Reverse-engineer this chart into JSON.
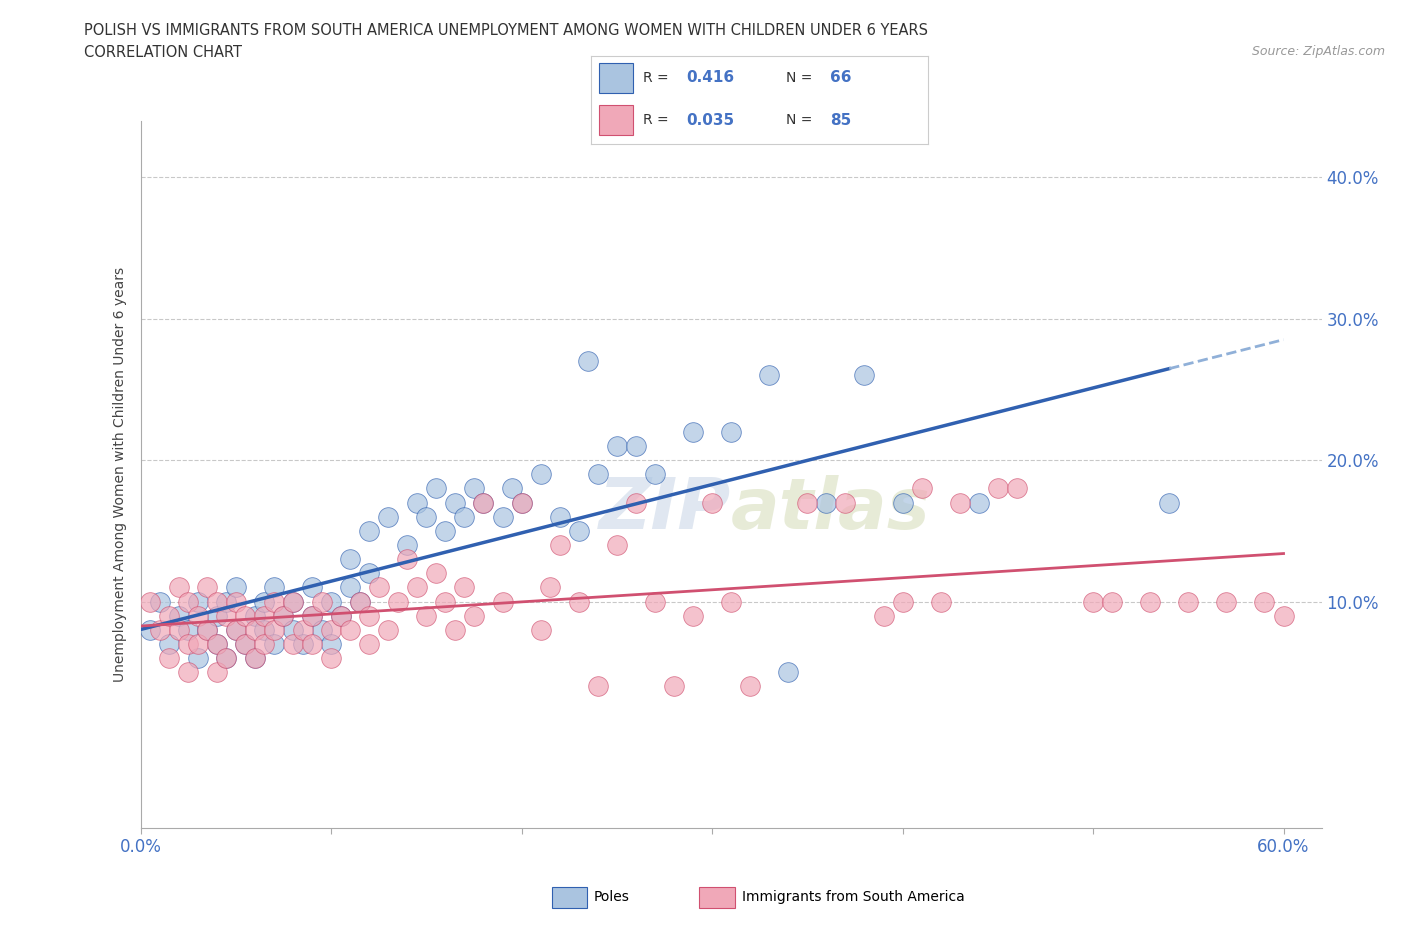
{
  "title_line1": "POLISH VS IMMIGRANTS FROM SOUTH AMERICA UNEMPLOYMENT AMONG WOMEN WITH CHILDREN UNDER 6 YEARS",
  "title_line2": "CORRELATION CHART",
  "source_text": "Source: ZipAtlas.com",
  "ylabel": "Unemployment Among Women with Children Under 6 years",
  "xlim": [
    0.0,
    0.62
  ],
  "ylim": [
    -0.06,
    0.44
  ],
  "xtick_labels": [
    "0.0%",
    "",
    "",
    "",
    "",
    "",
    "60.0%"
  ],
  "xtick_vals": [
    0.0,
    0.1,
    0.2,
    0.3,
    0.4,
    0.5,
    0.6
  ],
  "ytick_labels": [
    "10.0%",
    "20.0%",
    "30.0%",
    "40.0%"
  ],
  "ytick_vals": [
    0.1,
    0.2,
    0.3,
    0.4
  ],
  "R_poles": 0.416,
  "N_poles": 66,
  "R_sa": 0.035,
  "N_sa": 85,
  "poles_color": "#aac4e0",
  "sa_color": "#f0a8b8",
  "trendline_poles_color": "#3060b0",
  "trendline_sa_color": "#d05070",
  "trendline_poles_ext_color": "#90b0d8",
  "grid_color": "#bbbbbb",
  "background_color": "#ffffff",
  "legend_text_color": "#4472c4",
  "watermark_color": "#ccd8e8",
  "poles_scatter": [
    [
      0.005,
      0.08
    ],
    [
      0.01,
      0.1
    ],
    [
      0.015,
      0.07
    ],
    [
      0.02,
      0.09
    ],
    [
      0.025,
      0.08
    ],
    [
      0.03,
      0.06
    ],
    [
      0.03,
      0.1
    ],
    [
      0.035,
      0.08
    ],
    [
      0.04,
      0.07
    ],
    [
      0.04,
      0.09
    ],
    [
      0.045,
      0.06
    ],
    [
      0.045,
      0.1
    ],
    [
      0.05,
      0.08
    ],
    [
      0.05,
      0.11
    ],
    [
      0.055,
      0.07
    ],
    [
      0.06,
      0.09
    ],
    [
      0.06,
      0.06
    ],
    [
      0.065,
      0.1
    ],
    [
      0.065,
      0.08
    ],
    [
      0.07,
      0.07
    ],
    [
      0.07,
      0.11
    ],
    [
      0.075,
      0.09
    ],
    [
      0.08,
      0.08
    ],
    [
      0.08,
      0.1
    ],
    [
      0.085,
      0.07
    ],
    [
      0.09,
      0.09
    ],
    [
      0.09,
      0.11
    ],
    [
      0.095,
      0.08
    ],
    [
      0.1,
      0.1
    ],
    [
      0.1,
      0.07
    ],
    [
      0.105,
      0.09
    ],
    [
      0.11,
      0.11
    ],
    [
      0.11,
      0.13
    ],
    [
      0.115,
      0.1
    ],
    [
      0.12,
      0.12
    ],
    [
      0.12,
      0.15
    ],
    [
      0.13,
      0.16
    ],
    [
      0.14,
      0.14
    ],
    [
      0.145,
      0.17
    ],
    [
      0.15,
      0.16
    ],
    [
      0.155,
      0.18
    ],
    [
      0.16,
      0.15
    ],
    [
      0.165,
      0.17
    ],
    [
      0.17,
      0.16
    ],
    [
      0.175,
      0.18
    ],
    [
      0.18,
      0.17
    ],
    [
      0.19,
      0.16
    ],
    [
      0.195,
      0.18
    ],
    [
      0.2,
      0.17
    ],
    [
      0.21,
      0.19
    ],
    [
      0.22,
      0.16
    ],
    [
      0.23,
      0.15
    ],
    [
      0.235,
      0.27
    ],
    [
      0.24,
      0.19
    ],
    [
      0.25,
      0.21
    ],
    [
      0.26,
      0.21
    ],
    [
      0.27,
      0.19
    ],
    [
      0.29,
      0.22
    ],
    [
      0.31,
      0.22
    ],
    [
      0.33,
      0.26
    ],
    [
      0.34,
      0.05
    ],
    [
      0.36,
      0.17
    ],
    [
      0.38,
      0.26
    ],
    [
      0.4,
      0.17
    ],
    [
      0.44,
      0.17
    ],
    [
      0.54,
      0.17
    ]
  ],
  "sa_scatter": [
    [
      0.005,
      0.1
    ],
    [
      0.01,
      0.08
    ],
    [
      0.015,
      0.09
    ],
    [
      0.015,
      0.06
    ],
    [
      0.02,
      0.11
    ],
    [
      0.02,
      0.08
    ],
    [
      0.025,
      0.1
    ],
    [
      0.025,
      0.07
    ],
    [
      0.025,
      0.05
    ],
    [
      0.03,
      0.09
    ],
    [
      0.03,
      0.07
    ],
    [
      0.035,
      0.11
    ],
    [
      0.035,
      0.08
    ],
    [
      0.04,
      0.1
    ],
    [
      0.04,
      0.07
    ],
    [
      0.04,
      0.05
    ],
    [
      0.045,
      0.09
    ],
    [
      0.045,
      0.06
    ],
    [
      0.05,
      0.1
    ],
    [
      0.05,
      0.08
    ],
    [
      0.055,
      0.07
    ],
    [
      0.055,
      0.09
    ],
    [
      0.06,
      0.08
    ],
    [
      0.06,
      0.06
    ],
    [
      0.065,
      0.09
    ],
    [
      0.065,
      0.07
    ],
    [
      0.07,
      0.1
    ],
    [
      0.07,
      0.08
    ],
    [
      0.075,
      0.09
    ],
    [
      0.08,
      0.07
    ],
    [
      0.08,
      0.1
    ],
    [
      0.085,
      0.08
    ],
    [
      0.09,
      0.09
    ],
    [
      0.09,
      0.07
    ],
    [
      0.095,
      0.1
    ],
    [
      0.1,
      0.08
    ],
    [
      0.1,
      0.06
    ],
    [
      0.105,
      0.09
    ],
    [
      0.11,
      0.08
    ],
    [
      0.115,
      0.1
    ],
    [
      0.12,
      0.09
    ],
    [
      0.12,
      0.07
    ],
    [
      0.125,
      0.11
    ],
    [
      0.13,
      0.08
    ],
    [
      0.135,
      0.1
    ],
    [
      0.14,
      0.13
    ],
    [
      0.145,
      0.11
    ],
    [
      0.15,
      0.09
    ],
    [
      0.155,
      0.12
    ],
    [
      0.16,
      0.1
    ],
    [
      0.165,
      0.08
    ],
    [
      0.17,
      0.11
    ],
    [
      0.175,
      0.09
    ],
    [
      0.18,
      0.17
    ],
    [
      0.19,
      0.1
    ],
    [
      0.2,
      0.17
    ],
    [
      0.21,
      0.08
    ],
    [
      0.215,
      0.11
    ],
    [
      0.22,
      0.14
    ],
    [
      0.23,
      0.1
    ],
    [
      0.24,
      0.04
    ],
    [
      0.25,
      0.14
    ],
    [
      0.26,
      0.17
    ],
    [
      0.27,
      0.1
    ],
    [
      0.28,
      0.04
    ],
    [
      0.29,
      0.09
    ],
    [
      0.3,
      0.17
    ],
    [
      0.31,
      0.1
    ],
    [
      0.32,
      0.04
    ],
    [
      0.35,
      0.17
    ],
    [
      0.37,
      0.17
    ],
    [
      0.39,
      0.09
    ],
    [
      0.4,
      0.1
    ],
    [
      0.41,
      0.18
    ],
    [
      0.42,
      0.1
    ],
    [
      0.43,
      0.17
    ],
    [
      0.45,
      0.18
    ],
    [
      0.46,
      0.18
    ],
    [
      0.5,
      0.1
    ],
    [
      0.51,
      0.1
    ],
    [
      0.53,
      0.1
    ],
    [
      0.55,
      0.1
    ],
    [
      0.57,
      0.1
    ],
    [
      0.59,
      0.1
    ],
    [
      0.6,
      0.09
    ]
  ]
}
